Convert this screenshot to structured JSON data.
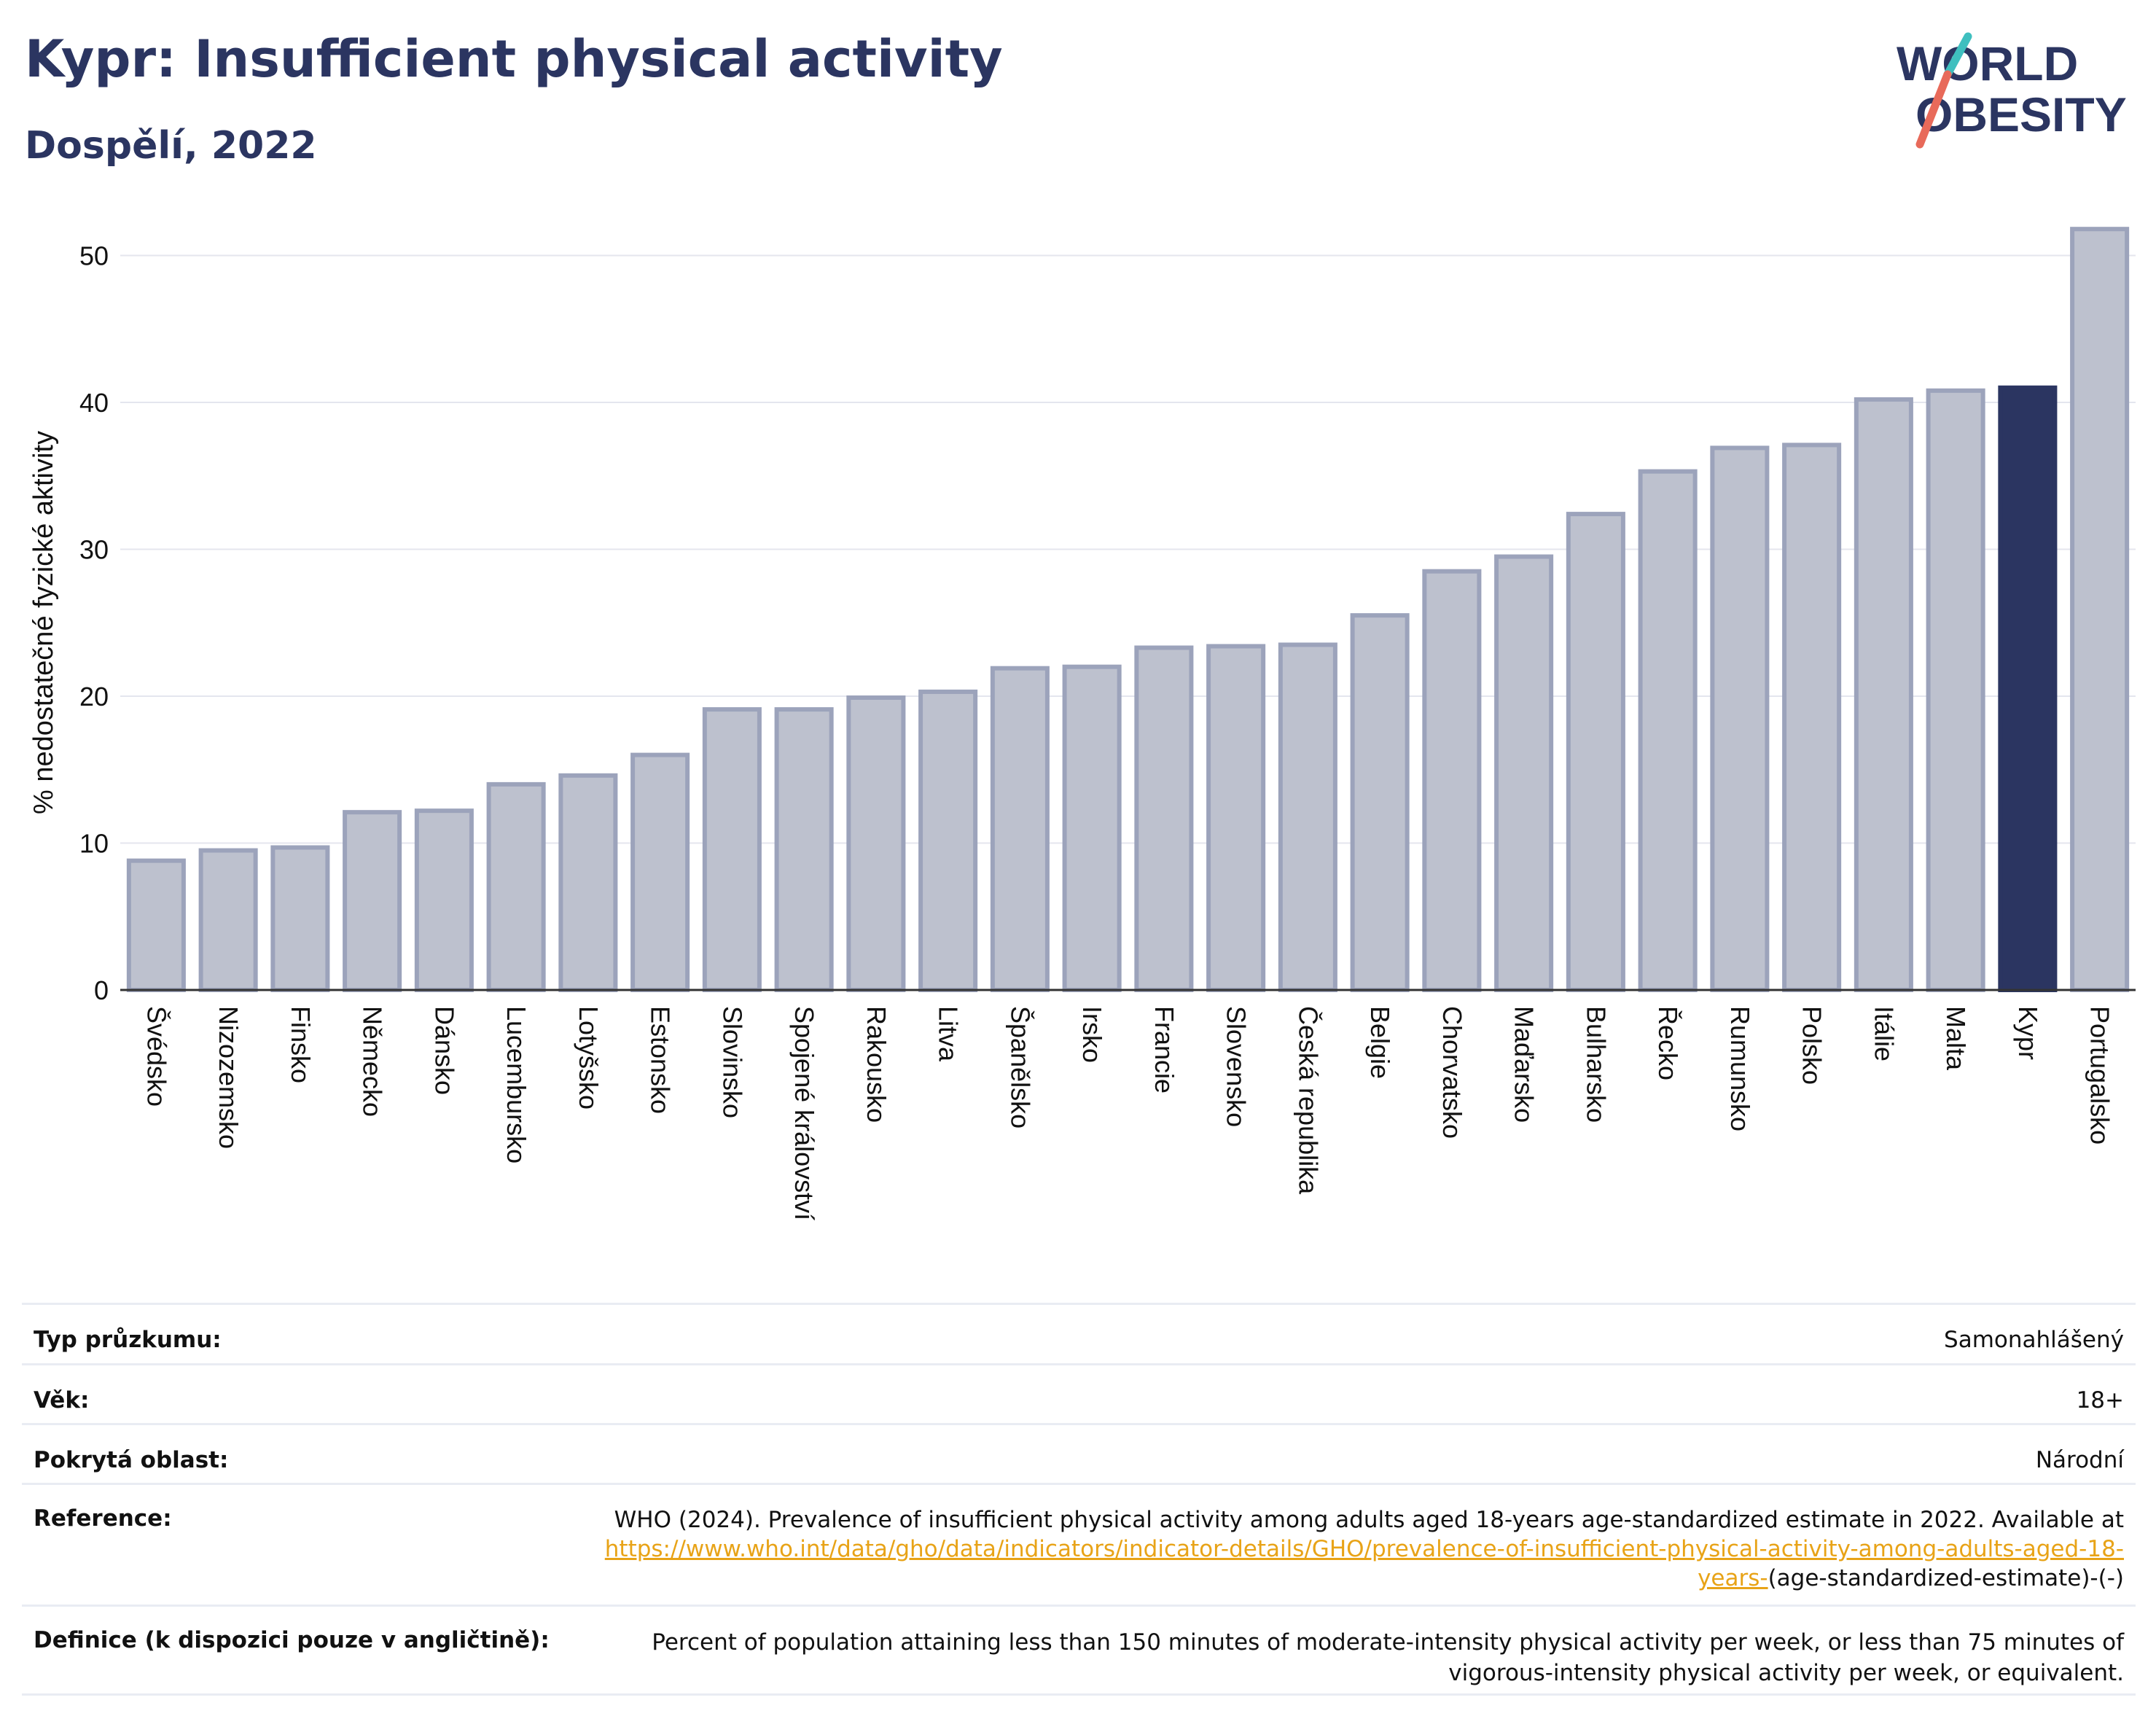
{
  "header": {
    "title": "Kypr: Insufficient physical activity",
    "subtitle": "Dospělí, 2022"
  },
  "logo": {
    "line1": "WORLD",
    "line2": "OBESITY"
  },
  "colors": {
    "bar": "#bdc1ce",
    "bar_edge": "#9ca3bb",
    "highlight": "#2b3561",
    "title": "#2b3561",
    "link": "#e8a317"
  },
  "chart_data": {
    "type": "bar",
    "title": "Kypr: Insufficient physical activity",
    "subtitle": "Dospělí, 2022",
    "ylabel": "% nedostatečné fyzické aktivity",
    "xlabel": "",
    "ylim": [
      0,
      53
    ],
    "yticks": [
      0,
      10,
      20,
      30,
      40,
      50
    ],
    "grid": true,
    "highlight": "Kypr",
    "categories": [
      "Švédsko",
      "Nizozemsko",
      "Finsko",
      "Německo",
      "Dánsko",
      "Lucembursko",
      "Lotyšsko",
      "Estonsko",
      "Slovinsko",
      "Spojené království",
      "Rakousko",
      "Litva",
      "Španělsko",
      "Irsko",
      "Francie",
      "Slovensko",
      "Česká republika",
      "Belgie",
      "Chorvatsko",
      "Maďarsko",
      "Bulharsko",
      "Řecko",
      "Rumunsko",
      "Polsko",
      "Itálie",
      "Malta",
      "Kypr",
      "Portugalsko"
    ],
    "values": [
      8.8,
      9.5,
      9.7,
      12.1,
      12.2,
      14.0,
      14.6,
      16.0,
      19.1,
      19.1,
      19.9,
      20.3,
      21.9,
      22.0,
      23.3,
      23.4,
      23.5,
      25.5,
      28.5,
      29.5,
      32.4,
      35.3,
      36.9,
      37.1,
      40.2,
      40.8,
      41.0,
      51.8
    ]
  },
  "meta": {
    "survey_label": "Typ průzkumu:",
    "survey_value": "Samonahlášený",
    "age_label": "Věk:",
    "age_value": "18+",
    "coverage_label": "Pokrytá oblast:",
    "coverage_value": "Národní",
    "reference_label": "Reference:",
    "reference_text": "WHO (2024). Prevalence of insufficient physical activity among adults aged 18-years age-standardized estimate in 2022. Available at",
    "reference_link": "https://www.who.int/data/gho/data/indicators/indicator-details/GHO/prevalence-of-insufficient-physical-activity-among-adults-aged-18-years-",
    "reference_tail": "(age-standardized-estimate)-(-)",
    "definition_label": "Definice (k dispozici pouze v angličtině):",
    "definition_text": "Percent of population attaining less than 150 minutes of moderate-intensity physical activity per week, or less than 75 minutes of vigorous-intensity physical activity per week, or equivalent."
  }
}
